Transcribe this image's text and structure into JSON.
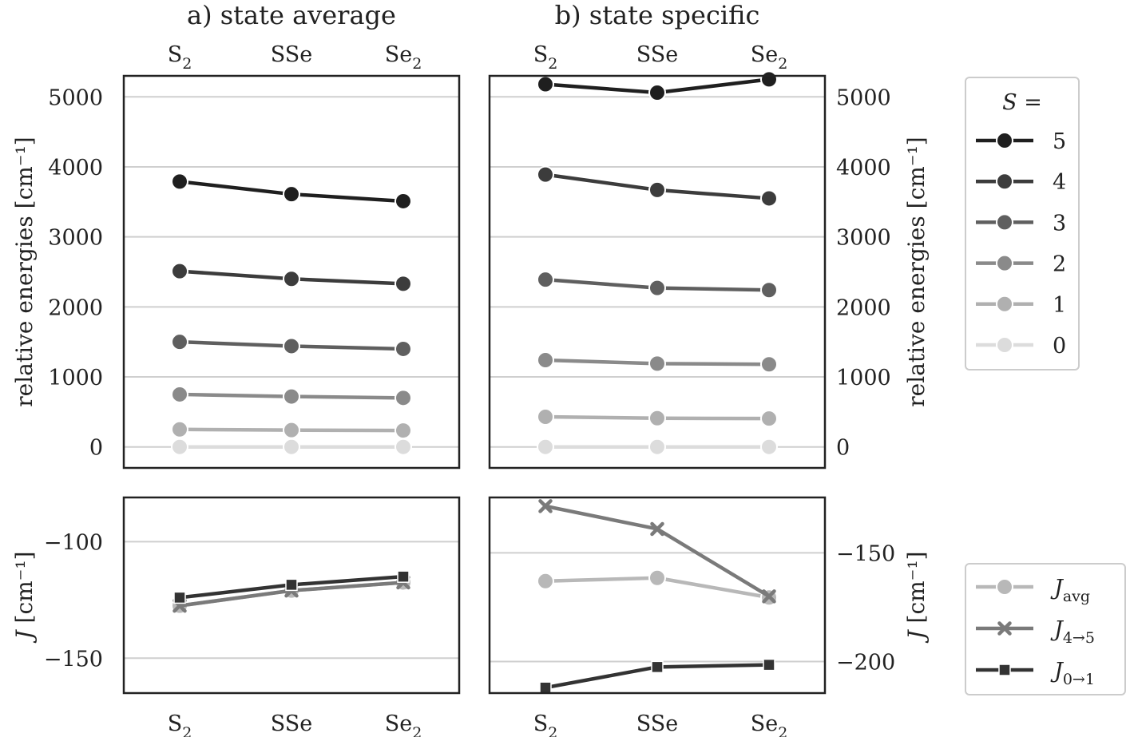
{
  "chart_data": [
    {
      "id": "a-top",
      "type": "line",
      "title": "a) state average",
      "categories": [
        "S2",
        "SSe",
        "Se2"
      ],
      "ylabel": "relative energies [cm⁻¹]",
      "ylim": [
        -300,
        5300
      ],
      "yticks": [
        0,
        1000,
        2000,
        3000,
        4000,
        5000
      ],
      "grid": true,
      "series": [
        {
          "name": "5",
          "color": "#1f1f1f",
          "marker": "circle",
          "values": [
            3790,
            3610,
            3510
          ]
        },
        {
          "name": "4",
          "color": "#3c3c3c",
          "marker": "circle",
          "values": [
            2510,
            2400,
            2330
          ]
        },
        {
          "name": "3",
          "color": "#5f5f5f",
          "marker": "circle",
          "values": [
            1500,
            1440,
            1400
          ]
        },
        {
          "name": "2",
          "color": "#8a8a8a",
          "marker": "circle",
          "values": [
            750,
            720,
            700
          ]
        },
        {
          "name": "1",
          "color": "#b0b0b0",
          "marker": "circle",
          "values": [
            250,
            240,
            235
          ]
        },
        {
          "name": "0",
          "color": "#dcdcdc",
          "marker": "circle",
          "values": [
            0,
            0,
            0
          ]
        }
      ]
    },
    {
      "id": "b-top",
      "type": "line",
      "title": "b) state specific",
      "categories": [
        "S2",
        "SSe",
        "Se2"
      ],
      "ylabel": "relative energies [cm⁻¹]",
      "ylim": [
        -300,
        5300
      ],
      "yticks": [
        0,
        1000,
        2000,
        3000,
        4000,
        5000
      ],
      "grid": true,
      "series": [
        {
          "name": "5",
          "color": "#1f1f1f",
          "marker": "circle",
          "values": [
            5180,
            5060,
            5250
          ]
        },
        {
          "name": "4",
          "color": "#3c3c3c",
          "marker": "circle",
          "values": [
            3890,
            3670,
            3550
          ]
        },
        {
          "name": "3",
          "color": "#5f5f5f",
          "marker": "circle",
          "values": [
            2390,
            2270,
            2240
          ]
        },
        {
          "name": "2",
          "color": "#8a8a8a",
          "marker": "circle",
          "values": [
            1240,
            1190,
            1180
          ]
        },
        {
          "name": "1",
          "color": "#b0b0b0",
          "marker": "circle",
          "values": [
            430,
            410,
            405
          ]
        },
        {
          "name": "0",
          "color": "#dcdcdc",
          "marker": "circle",
          "values": [
            0,
            0,
            0
          ]
        }
      ]
    },
    {
      "id": "a-bottom",
      "type": "line",
      "categories": [
        "S2",
        "SSe",
        "Se2"
      ],
      "ylabel": "J [cm⁻¹]",
      "ylim": [
        -165,
        -81
      ],
      "yticks": [
        -100,
        -150
      ],
      "grid": true,
      "series": [
        {
          "name": "J_avg",
          "color": "#b8b8b8",
          "marker": "circle",
          "values": [
            -127.5,
            -121,
            -117.5
          ]
        },
        {
          "name": "J_4→5",
          "color": "#7a7a7a",
          "marker": "x",
          "values": [
            -127.5,
            -121,
            -117.5
          ]
        },
        {
          "name": "J_0→1",
          "color": "#333333",
          "marker": "square",
          "values": [
            -124,
            -118.5,
            -115
          ]
        }
      ]
    },
    {
      "id": "b-bottom",
      "type": "line",
      "categories": [
        "S2",
        "SSe",
        "Se2"
      ],
      "ylabel": "J [cm⁻¹]",
      "ylim": [
        -214.5,
        -124.5
      ],
      "yticks": [
        -150,
        -200
      ],
      "grid": true,
      "series": [
        {
          "name": "J_avg",
          "color": "#b8b8b8",
          "marker": "circle",
          "values": [
            -163,
            -161.5,
            -170.5
          ]
        },
        {
          "name": "J_4→5",
          "color": "#7a7a7a",
          "marker": "x",
          "values": [
            -128.5,
            -139,
            -170
          ]
        },
        {
          "name": "J_0→1",
          "color": "#333333",
          "marker": "square",
          "values": [
            -212,
            -202.5,
            -201.5
          ]
        }
      ]
    }
  ],
  "legend_top": {
    "title_var": "S",
    "title_eq": " =",
    "entries": [
      {
        "label": "5",
        "color": "#1f1f1f"
      },
      {
        "label": "4",
        "color": "#3c3c3c"
      },
      {
        "label": "3",
        "color": "#5f5f5f"
      },
      {
        "label": "2",
        "color": "#8a8a8a"
      },
      {
        "label": "1",
        "color": "#b0b0b0"
      },
      {
        "label": "0",
        "color": "#dcdcdc"
      }
    ]
  },
  "legend_bottom": {
    "entries": [
      {
        "base": "J",
        "sub": "avg",
        "color": "#b8b8b8",
        "marker": "circle"
      },
      {
        "base": "J",
        "sub": "4→5",
        "color": "#7a7a7a",
        "marker": "x"
      },
      {
        "base": "J",
        "sub": "0→1",
        "color": "#333333",
        "marker": "square"
      }
    ]
  }
}
